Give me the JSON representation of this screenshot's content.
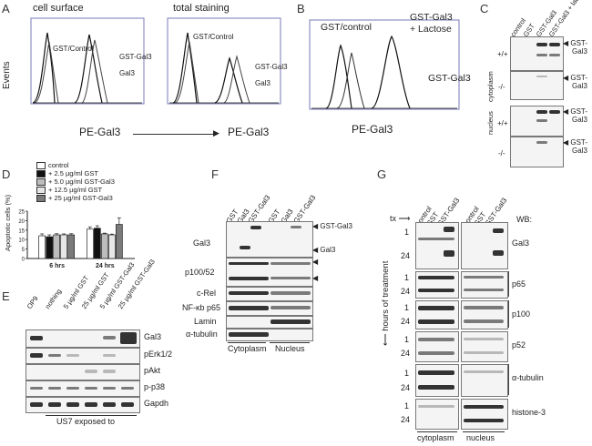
{
  "figure": {
    "panel_letters": [
      "A",
      "B",
      "C",
      "D",
      "E",
      "F",
      "G"
    ]
  },
  "panel_a": {
    "left": {
      "title": "cell surface",
      "curve_labels": [
        "GST/Control",
        "GST-Gal3",
        "Gal3"
      ]
    },
    "right": {
      "title": "total staining",
      "curve_labels": [
        "GST/Control",
        "GST-Gal3",
        "Gal3"
      ]
    },
    "ylabel": "Events",
    "xlabel": "PE-Gal3",
    "xlabel2": "PE-Gal3"
  },
  "panel_b": {
    "curve_labels": [
      "GST/control",
      "GST-Gal3\n+ Lactose",
      "GST-Gal3"
    ],
    "label_top": "GST/control",
    "label_lac_1": "GST-Gal3",
    "label_lac_2": "+ Lactose",
    "label_gst": "GST-Gal3",
    "xlabel": "PE-Gal3"
  },
  "panel_c": {
    "lanes": [
      "control",
      "GST",
      "GST-Gal3",
      "GST-Gal3 + lactose"
    ],
    "rows": [
      "+/+",
      "-/-",
      "+/+",
      "-/-"
    ],
    "compartments": [
      "cytoplasm",
      "nucleus"
    ],
    "arrow_label": "GST-\nGal3",
    "arrow_l1": "GST-",
    "arrow_l2": "Gal3"
  },
  "panel_d": {
    "legend": [
      "control",
      "+ 2.5 µg/ml GST",
      "+ 5.0 µg/ml GST-Gal3",
      "+ 12.5 µg/ml GST",
      "+ 25 µg/ml GST-Gal3"
    ],
    "legend_colors": [
      "#ffffff",
      "#111111",
      "#bdbdbd",
      "#e6e6e6",
      "#7a7a7a"
    ],
    "ylabel": "Apoptotic cells (%)",
    "yticks": [
      "0",
      "5",
      "10",
      "15",
      "20",
      "25"
    ]
  },
  "chart_data": {
    "type": "bar",
    "categories": [
      "6 hrs",
      "24 hrs"
    ],
    "series": [
      {
        "name": "control",
        "values": [
          12,
          15.5
        ]
      },
      {
        "name": "+ 2.5 µg/ml GST",
        "values": [
          11.5,
          16
        ]
      },
      {
        "name": "+ 5.0 µg/ml GST-Gal3",
        "values": [
          12.5,
          13
        ]
      },
      {
        "name": "+ 12.5 µg/ml GST",
        "values": [
          12.5,
          12.5
        ]
      },
      {
        "name": "+ 25 µg/ml GST-Gal3",
        "values": [
          12.5,
          18
        ]
      }
    ],
    "errors": [
      [
        1,
        1.2
      ],
      [
        1,
        1.3
      ],
      [
        0.6,
        0.4
      ],
      [
        0.5,
        0.4
      ],
      [
        0.6,
        3.5
      ]
    ],
    "ylabel": "Apoptotic cells (%)",
    "ylim": [
      0,
      25
    ]
  },
  "panel_e": {
    "lanes": [
      "OP9",
      "nothing",
      "5 µg/ml GST",
      "25 µg/ml GST",
      "5 µg/ml GST-Gal3",
      "25 µg/ml GST-Gal3"
    ],
    "rows": [
      "Gal3",
      "pErk1/2",
      "pAkt",
      "p-p38",
      "Gapdh"
    ],
    "footer": "US7 exposed to"
  },
  "panel_f": {
    "lanes": [
      "GST",
      "Gal3",
      "GST-Gal3",
      "GST",
      "Gal3",
      "GST-Gal3"
    ],
    "rows": [
      "Gal3",
      "p100/52",
      "c-Rel",
      "NF-κb p65",
      "Lamin",
      "α-tubulin"
    ],
    "arrow_gst": "GST-Gal3",
    "arrow_gal3": "Gal3",
    "cytoplasm": "Cytoplasm",
    "nucleus": "Nucleus"
  },
  "panel_g": {
    "tx": "tx",
    "lanes": [
      "control",
      "GST",
      "GST-Gal3",
      "control",
      "GST",
      "GST-Gal3"
    ],
    "wb": "WB:",
    "rows": [
      "Gal3",
      "p65",
      "p100",
      "p52",
      "α-tubulin",
      "histone-3"
    ],
    "hours": [
      "1",
      "24",
      "1",
      "24",
      "1",
      "24",
      "1",
      "24",
      "1",
      "24",
      "1",
      "24"
    ],
    "ylabel": "hours of treatment",
    "cytoplasm": "cytoplasm",
    "nucleus": "nucleus"
  }
}
